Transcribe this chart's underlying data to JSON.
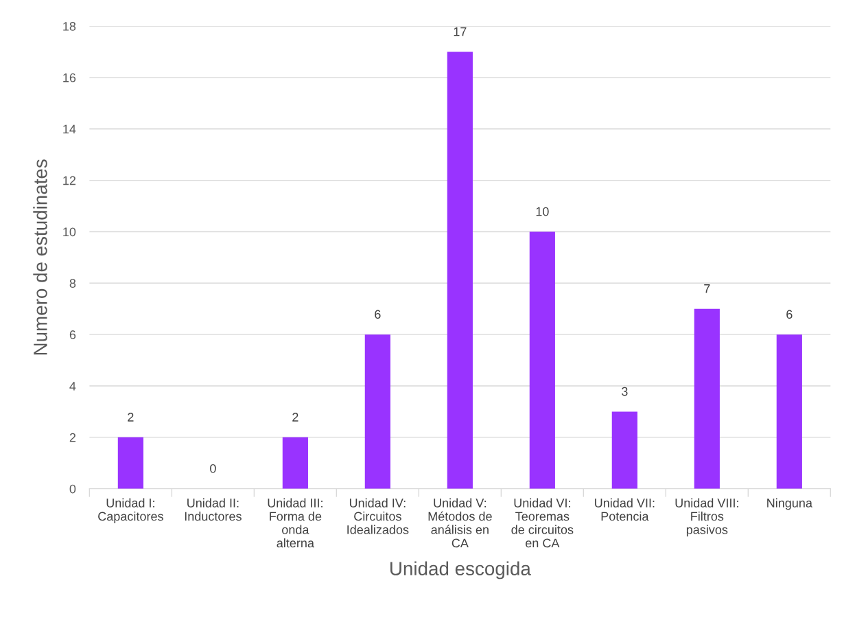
{
  "chart_data": {
    "type": "bar",
    "xlabel": "Unidad escogida",
    "ylabel": "Numero de estudinates",
    "categories": [
      "Unidad I:\nCapacitores",
      "Unidad II:\nInductores",
      "Unidad III:\nForma de\nonda\nalterna",
      "Unidad IV:\nCircuitos\nIdealizados",
      "Unidad V:\nMétodos de\nanálisis en\nCA",
      "Unidad VI:\nTeoremas\nde circuitos\nen CA",
      "Unidad VII:\nPotencia",
      "Unidad VIII:\nFiltros\npasivos",
      "Ninguna"
    ],
    "values": [
      2,
      0,
      2,
      6,
      17,
      10,
      3,
      7,
      6
    ],
    "color": "#9933ff",
    "ylim": [
      0,
      18
    ],
    "yticks": [
      0,
      2,
      4,
      6,
      8,
      10,
      12,
      14,
      16,
      18
    ],
    "grid": "y",
    "data_labels": true
  }
}
